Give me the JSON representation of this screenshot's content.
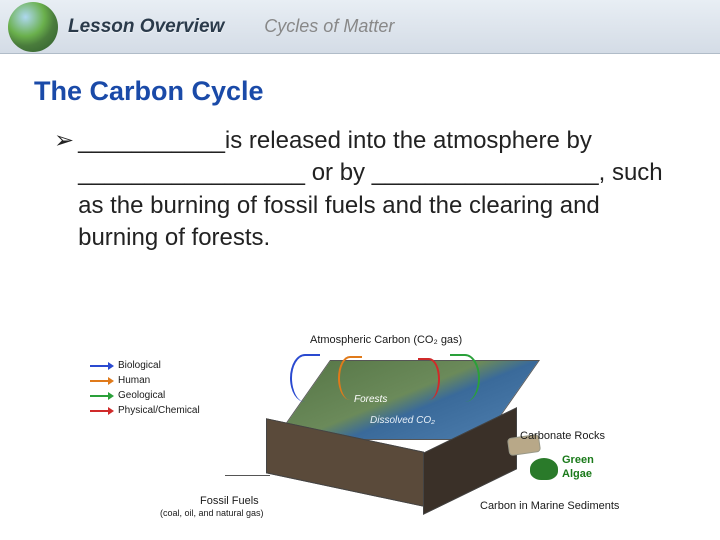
{
  "header": {
    "lesson_label": "Lesson Overview",
    "breadcrumb": "Cycles of Matter"
  },
  "slide": {
    "title": "The Carbon Cycle",
    "bullet": "___________is released into the atmosphere by _________________ or by _________________, such as the burning of fossil fuels and the clearing and burning of forests."
  },
  "legend": {
    "items": [
      {
        "label": "Biological",
        "color": "#2a4ad0"
      },
      {
        "label": "Human",
        "color": "#e07a1a"
      },
      {
        "label": "Geological",
        "color": "#2aa03a"
      },
      {
        "label": "Physical/Chemical",
        "color": "#d02a2a"
      }
    ]
  },
  "diagram": {
    "labels": {
      "atm": "Atmospheric Carbon (CO₂ gas)",
      "forests": "Forests",
      "dissolved": "Dissolved CO₂",
      "ff_title": "Fossil Fuels",
      "ff_sub": "(coal, oil, and natural gas)",
      "carbonate": "Carbonate Rocks",
      "algae_t": "Green",
      "algae_b": "Algae",
      "marine": "Carbon in Marine Sediments"
    },
    "arc_colors": {
      "bio": "#2a4ad0",
      "human": "#e07a1a",
      "geo": "#2aa03a",
      "pc": "#d02a2a"
    },
    "block_colors": {
      "top": "linear-gradient(150deg,#5a7a4a 0%,#6b8a5a 45%,#3a6a9a 60%,#4a7aaa 100%)",
      "front": "#5a4a3a",
      "side": "#3a3028",
      "algae": "#2a7a2a",
      "rock": "#b8a888"
    }
  },
  "colors": {
    "title": "#1a4aa8",
    "body": "#222222",
    "header_text": "#2a3a4a",
    "breadcrumb": "#888888"
  },
  "fonts": {
    "title_size": 27,
    "body_size": 24,
    "header_size": 19,
    "legend_size": 10
  }
}
